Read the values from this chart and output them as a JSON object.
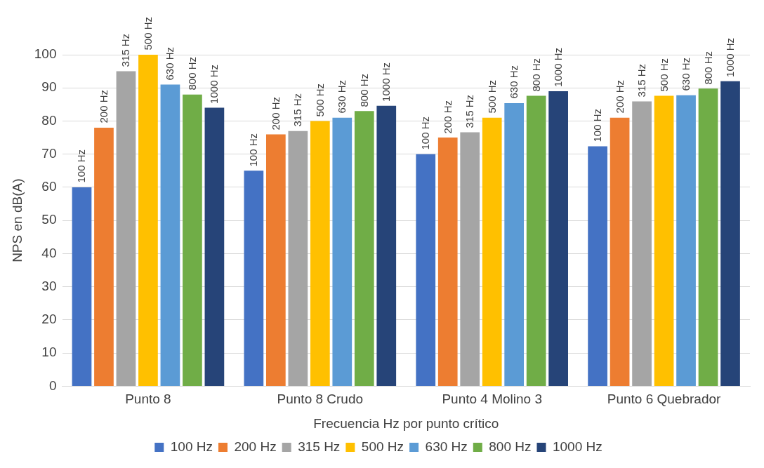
{
  "chart_data": {
    "type": "bar",
    "xlabel": "Frecuencia Hz por punto crítico",
    "ylabel": "NPS en dB(A)",
    "categories": [
      "Punto 8",
      "Punto 8 Crudo",
      "Punto 4 Molino 3",
      "Punto 6 Quebrador"
    ],
    "ylim": [
      0,
      100
    ],
    "yticks": [
      0,
      10,
      20,
      30,
      40,
      50,
      60,
      70,
      80,
      90,
      100
    ],
    "grid": "y",
    "legend": "bottom",
    "series": [
      {
        "name": "100 Hz",
        "color": "#4472c4",
        "values": [
          60,
          65,
          70,
          72.4
        ]
      },
      {
        "name": "200 Hz",
        "color": "#ed7d31",
        "values": [
          78,
          76,
          75,
          81
        ]
      },
      {
        "name": "315 Hz",
        "color": "#a5a5a5",
        "values": [
          95,
          77,
          76.6,
          85.9
        ]
      },
      {
        "name": "500 Hz",
        "color": "#ffc000",
        "values": [
          100,
          80,
          81,
          87.6
        ]
      },
      {
        "name": "630 Hz",
        "color": "#5b9bd5",
        "values": [
          91,
          81,
          85.4,
          87.8
        ]
      },
      {
        "name": "800 Hz",
        "color": "#70ad47",
        "values": [
          88,
          83,
          87.6,
          89.8
        ]
      },
      {
        "name": "1000 Hz",
        "color": "#264478",
        "values": [
          84,
          84.6,
          89,
          92
        ]
      }
    ]
  }
}
